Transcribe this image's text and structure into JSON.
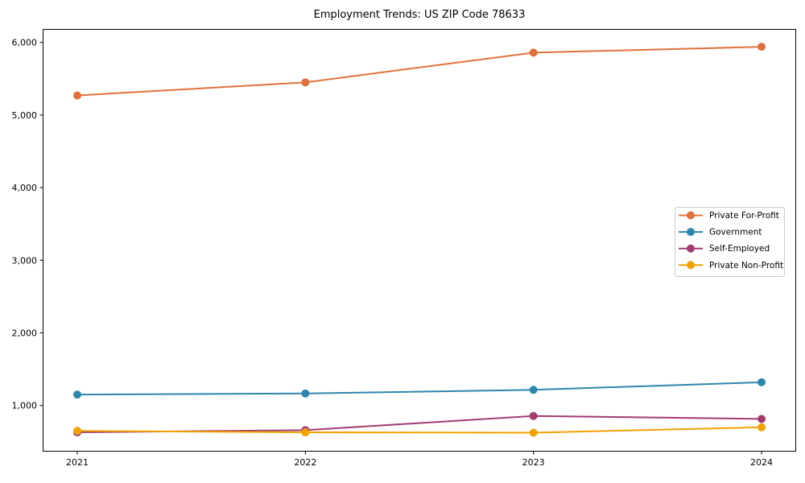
{
  "page": {
    "background_color": "#ffffff",
    "frame_color": "#000000"
  },
  "chart_data": {
    "type": "line",
    "title": "Employment Trends: US ZIP Code 78633",
    "xlabel": "",
    "ylabel": "",
    "x": [
      2021,
      2022,
      2023,
      2024
    ],
    "xtick_labels": [
      "2021",
      "2022",
      "2023",
      "2024"
    ],
    "yticks": [
      1000,
      2000,
      3000,
      4000,
      5000,
      6000
    ],
    "ytick_labels": [
      "1,000",
      "2,000",
      "3,000",
      "4,000",
      "5,000",
      "6,000"
    ],
    "xlim": [
      2020.85,
      2024.15
    ],
    "ylim": [
      370,
      6180
    ],
    "grid": false,
    "marker": "circle",
    "series": [
      {
        "name": "Private For-Profit",
        "color": "#E0713C",
        "values": [
          5270,
          5450,
          5860,
          5940
        ]
      },
      {
        "name": "Government",
        "color": "#2E86AB",
        "values": [
          1150,
          1165,
          1215,
          1320
        ]
      },
      {
        "name": "Self-Employed",
        "color": "#A23B72",
        "values": [
          630,
          660,
          855,
          815
        ]
      },
      {
        "name": "Private Non-Profit",
        "color": "#F0A202",
        "values": [
          650,
          630,
          625,
          700
        ]
      }
    ],
    "legend": {
      "position": "center-right",
      "border_color": "#cccccc",
      "background_color": "#ffffff",
      "items": [
        "Private For-Profit",
        "Government",
        "Self-Employed",
        "Private Non-Profit"
      ]
    }
  }
}
